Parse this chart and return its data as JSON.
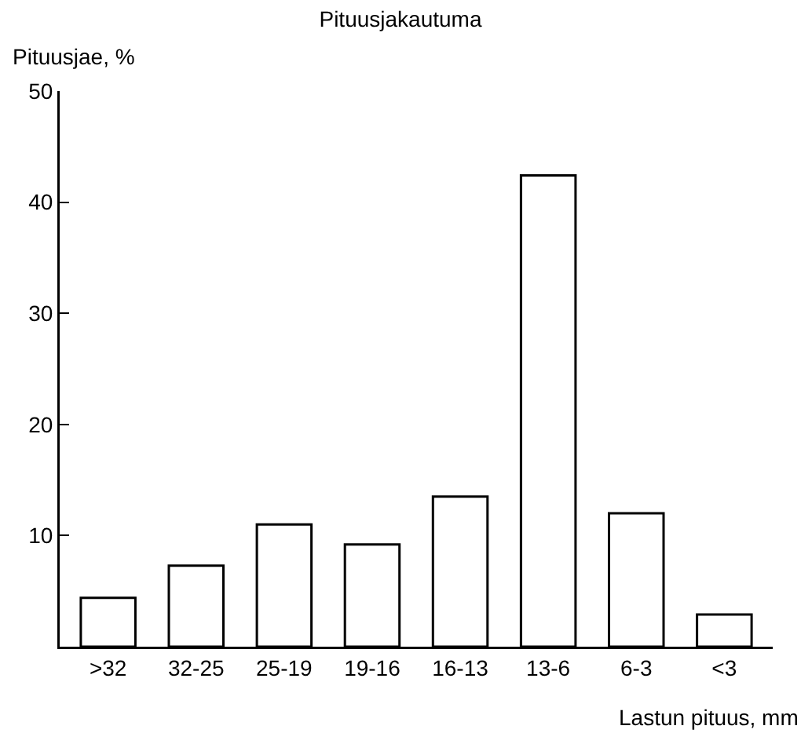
{
  "chart_data": {
    "type": "bar",
    "title": "Pituusjakautuma",
    "xlabel": "Lastun pituus, mm",
    "ylabel": "Pituusjae, %",
    "categories": [
      ">32",
      "32-25",
      "25-19",
      "19-16",
      "16-13",
      "13-6",
      "6-3",
      "<3"
    ],
    "values": [
      4.4,
      7.3,
      11,
      9.2,
      13.5,
      42.4,
      12,
      2.9
    ],
    "color": "#ffffff",
    "ylim": [
      0,
      50
    ],
    "yticks": [
      10,
      20,
      30,
      40,
      50
    ],
    "grid": false
  }
}
